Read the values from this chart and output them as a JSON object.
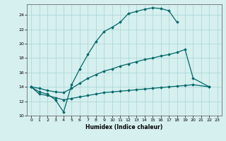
{
  "xlabel": "Humidex (Indice chaleur)",
  "background_color": "#d6efef",
  "grid_color": "#a8d4d4",
  "line_color": "#006868",
  "xlim": [
    -0.5,
    23.5
  ],
  "ylim": [
    10,
    25.5
  ],
  "xticks": [
    0,
    1,
    2,
    3,
    4,
    5,
    6,
    7,
    8,
    9,
    10,
    11,
    12,
    13,
    14,
    15,
    16,
    17,
    18,
    19,
    20,
    21,
    22,
    23
  ],
  "yticks": [
    10,
    12,
    14,
    16,
    18,
    20,
    22,
    24
  ],
  "curve1_x": [
    0,
    1,
    2,
    3,
    4,
    5,
    6,
    7,
    8,
    9,
    10,
    11,
    12,
    13,
    14,
    15,
    16,
    17,
    18
  ],
  "curve1_y": [
    14.0,
    13.3,
    13.0,
    12.2,
    10.5,
    14.3,
    16.5,
    18.5,
    20.3,
    21.7,
    22.3,
    23.0,
    24.2,
    24.5,
    24.8,
    25.0,
    24.9,
    24.6,
    23.0
  ],
  "curve2_x": [
    0,
    1,
    2,
    3,
    4,
    5,
    6,
    7,
    8,
    9,
    10,
    11,
    12,
    13,
    14,
    15,
    16,
    17,
    18,
    19,
    20,
    22
  ],
  "curve2_y": [
    14.0,
    13.8,
    13.5,
    13.3,
    13.2,
    13.8,
    14.5,
    15.2,
    15.7,
    16.2,
    16.5,
    16.9,
    17.2,
    17.5,
    17.8,
    18.0,
    18.3,
    18.5,
    18.8,
    19.2,
    15.2,
    14.0
  ],
  "curve3_x": [
    0,
    1,
    2,
    3,
    4,
    5,
    6,
    7,
    8,
    9,
    10,
    11,
    12,
    13,
    14,
    15,
    16,
    17,
    18,
    19,
    20,
    22
  ],
  "curve3_y": [
    14.0,
    13.0,
    12.8,
    12.5,
    12.2,
    12.4,
    12.6,
    12.8,
    13.0,
    13.2,
    13.3,
    13.4,
    13.5,
    13.6,
    13.7,
    13.8,
    13.9,
    14.0,
    14.1,
    14.2,
    14.3,
    14.0
  ]
}
